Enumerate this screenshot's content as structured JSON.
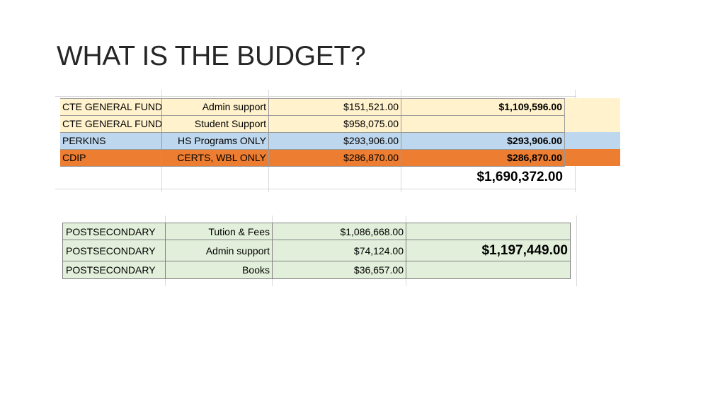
{
  "slide": {
    "title": "WHAT IS THE BUDGET?"
  },
  "colors": {
    "cream": "#fff2cc",
    "blue": "#bdd7ee",
    "orange": "#ed7d31",
    "green": "#e2efda"
  },
  "table1": {
    "rows": [
      {
        "fund": "CTE GENERAL FUND",
        "purpose": "Admin support",
        "amount": "$151,521.00",
        "total": "$1,109,596.00",
        "color": "cream"
      },
      {
        "fund": "CTE GENERAL FUND",
        "purpose": "Student Support",
        "amount": "$958,075.00",
        "total": "",
        "color": "cream"
      },
      {
        "fund": "PERKINS",
        "purpose": "HS Programs ONLY",
        "amount": "$293,906.00",
        "total": "$293,906.00",
        "color": "blue"
      },
      {
        "fund": "CDIP",
        "purpose": "CERTS, WBL ONLY",
        "amount": "$286,870.00",
        "total": "$286,870.00",
        "color": "orange"
      }
    ],
    "grand_total": "$1,690,372.00"
  },
  "table2": {
    "rows": [
      {
        "fund": "POSTSECONDARY",
        "purpose": "Tution & Fees",
        "amount": "$1,086,668.00"
      },
      {
        "fund": "POSTSECONDARY",
        "purpose": "Admin support",
        "amount": "$74,124.00"
      },
      {
        "fund": "POSTSECONDARY",
        "purpose": "Books",
        "amount": "$36,657.00"
      }
    ],
    "total": "$1,197,449.00"
  }
}
